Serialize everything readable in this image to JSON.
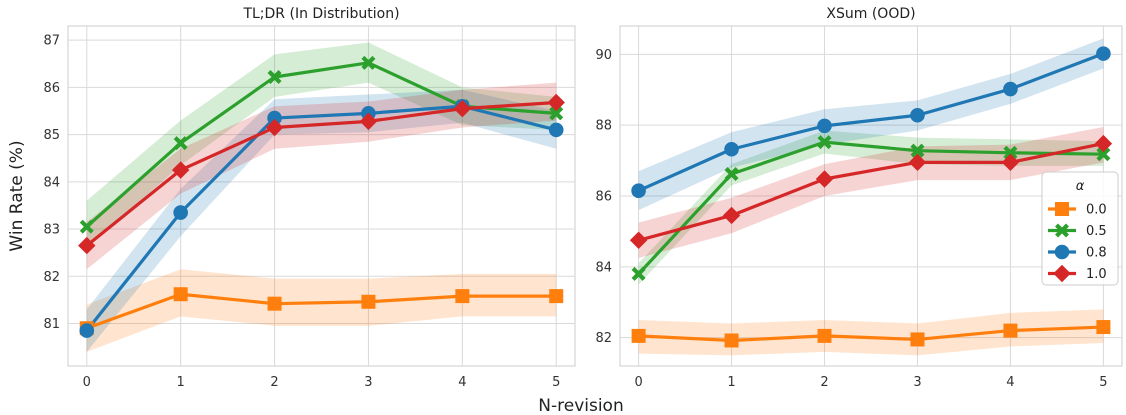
{
  "shared": {
    "ylabel": "Win Rate (%)",
    "xlabel": "N-revision"
  },
  "legend": {
    "title": "α",
    "placement": "center-right of right panel"
  },
  "series_colors": {
    "0.0": "#ff7f0e",
    "0.5": "#2ca02c",
    "0.8": "#1f77b4",
    "1.0": "#d62728"
  },
  "series_markers": {
    "0.0": "square",
    "0.5": "x",
    "0.8": "circle",
    "1.0": "diamond"
  },
  "chart_data": [
    {
      "type": "line",
      "title": "TL;DR (In Distribution)",
      "x": [
        0,
        1,
        2,
        3,
        4,
        5
      ],
      "xlim": [
        -0.2,
        5.2
      ],
      "ylim": [
        80.1,
        87.3
      ],
      "yticks": [
        81,
        82,
        83,
        84,
        85,
        86,
        87
      ],
      "grid": true,
      "series": [
        {
          "name": "0.0",
          "values": [
            80.9,
            81.62,
            81.42,
            81.46,
            81.58,
            81.58
          ],
          "lower": [
            80.4,
            81.15,
            80.95,
            80.95,
            81.15,
            81.15
          ],
          "upper": [
            81.4,
            82.15,
            81.95,
            81.95,
            82.05,
            82.05
          ]
        },
        {
          "name": "0.5",
          "values": [
            83.05,
            84.82,
            86.22,
            86.52,
            85.6,
            85.45
          ],
          "lower": [
            82.6,
            84.35,
            85.8,
            86.1,
            85.2,
            85.1
          ],
          "upper": [
            83.6,
            85.3,
            86.7,
            86.95,
            86.0,
            85.8
          ]
        },
        {
          "name": "0.8",
          "values": [
            80.85,
            83.35,
            85.35,
            85.45,
            85.6,
            85.1
          ],
          "lower": [
            80.4,
            82.85,
            85.0,
            85.05,
            85.25,
            84.7
          ],
          "upper": [
            81.3,
            83.85,
            85.75,
            85.85,
            85.95,
            85.5
          ]
        },
        {
          "name": "1.0",
          "values": [
            82.65,
            84.25,
            85.15,
            85.28,
            85.55,
            85.68
          ],
          "lower": [
            82.15,
            83.75,
            84.7,
            84.85,
            85.15,
            85.3
          ],
          "upper": [
            83.15,
            84.7,
            85.6,
            85.7,
            85.95,
            86.1
          ]
        }
      ]
    },
    {
      "type": "line",
      "title": "XSum (OOD)",
      "x": [
        0,
        1,
        2,
        3,
        4,
        5
      ],
      "xlim": [
        -0.2,
        5.2
      ],
      "ylim": [
        81.2,
        90.8
      ],
      "yticks": [
        82,
        84,
        86,
        88,
        90
      ],
      "grid": true,
      "series": [
        {
          "name": "0.0",
          "values": [
            82.05,
            81.92,
            82.05,
            81.95,
            82.2,
            82.3
          ],
          "lower": [
            81.55,
            81.5,
            81.6,
            81.5,
            81.75,
            81.85
          ],
          "upper": [
            82.5,
            82.4,
            82.5,
            82.4,
            82.7,
            82.8
          ]
        },
        {
          "name": "0.5",
          "values": [
            83.8,
            86.62,
            87.52,
            87.28,
            87.22,
            87.18
          ],
          "lower": [
            83.5,
            86.3,
            87.2,
            86.9,
            86.85,
            86.85
          ],
          "upper": [
            84.1,
            86.9,
            87.85,
            87.65,
            87.6,
            87.55
          ]
        },
        {
          "name": "0.8",
          "values": [
            86.15,
            87.32,
            87.98,
            88.28,
            89.02,
            90.02
          ],
          "lower": [
            85.6,
            86.8,
            87.45,
            87.85,
            88.6,
            89.6
          ],
          "upper": [
            86.7,
            87.8,
            88.45,
            88.7,
            89.45,
            90.45
          ]
        },
        {
          "name": "1.0",
          "values": [
            84.75,
            85.45,
            86.48,
            86.95,
            86.95,
            87.48
          ],
          "lower": [
            84.25,
            84.95,
            86.0,
            86.45,
            86.45,
            86.95
          ],
          "upper": [
            85.25,
            85.95,
            86.9,
            87.4,
            87.45,
            87.95
          ]
        }
      ]
    }
  ]
}
